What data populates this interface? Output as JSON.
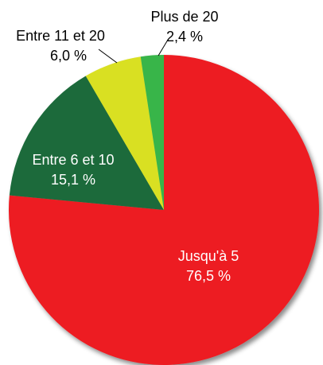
{
  "chart_data": {
    "type": "pie",
    "categories": [
      "Jusqu'à 5",
      "Entre 6 et 10",
      "Entre 11 et 20",
      "Plus de 20"
    ],
    "values": [
      76.5,
      15.1,
      6.0,
      2.4
    ],
    "value_labels": [
      "76,5 %",
      "15,1 %",
      "6,0 %",
      "2,4 %"
    ],
    "colors": [
      "#ed1c24",
      "#1a6b3a",
      "#d9e021",
      "#39b54a"
    ]
  }
}
